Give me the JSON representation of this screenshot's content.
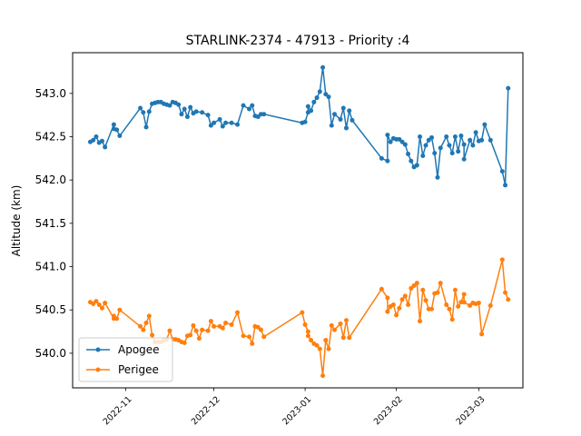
{
  "chart_data": {
    "type": "line",
    "title": "STARLINK-2374 - 47913 - Priority :4",
    "xlabel": "",
    "ylabel": "Altitude (km)",
    "x_ticks": [
      "2022-11",
      "2022-12",
      "2023-01",
      "2023-02",
      "2023-03"
    ],
    "y_ticks": [
      "540.0",
      "540.5",
      "541.0",
      "541.5",
      "542.0",
      "542.5",
      "543.0"
    ],
    "xlim": [
      "2022-10-14",
      "2023-03-16"
    ],
    "ylim": [
      539.6,
      543.47
    ],
    "grid": false,
    "legend_position": "lower-left",
    "series": [
      {
        "name": "Apogee",
        "color": "#1f77b4",
        "points": [
          [
            "2022-10-20",
            542.44
          ],
          [
            "2022-10-21",
            542.46
          ],
          [
            "2022-10-22",
            542.5
          ],
          [
            "2022-10-23",
            542.43
          ],
          [
            "2022-10-24",
            542.45
          ],
          [
            "2022-10-25",
            542.38
          ],
          [
            "2022-10-28",
            542.64
          ],
          [
            "2022-10-28",
            542.59
          ],
          [
            "2022-10-29",
            542.58
          ],
          [
            "2022-10-30",
            542.51
          ],
          [
            "2022-11-06",
            542.83
          ],
          [
            "2022-11-07",
            542.78
          ],
          [
            "2022-11-08",
            542.61
          ],
          [
            "2022-11-09",
            542.79
          ],
          [
            "2022-11-10",
            542.88
          ],
          [
            "2022-11-11",
            542.89
          ],
          [
            "2022-11-12",
            542.9
          ],
          [
            "2022-11-13",
            542.9
          ],
          [
            "2022-11-14",
            542.88
          ],
          [
            "2022-11-15",
            542.87
          ],
          [
            "2022-11-16",
            542.86
          ],
          [
            "2022-11-17",
            542.9
          ],
          [
            "2022-11-18",
            542.89
          ],
          [
            "2022-11-19",
            542.87
          ],
          [
            "2022-11-20",
            542.76
          ],
          [
            "2022-11-21",
            542.82
          ],
          [
            "2022-11-22",
            542.73
          ],
          [
            "2022-11-23",
            542.84
          ],
          [
            "2022-11-24",
            542.77
          ],
          [
            "2022-11-25",
            542.79
          ],
          [
            "2022-11-27",
            542.78
          ],
          [
            "2022-11-29",
            542.75
          ],
          [
            "2022-11-30",
            542.63
          ],
          [
            "2022-12-01",
            542.66
          ],
          [
            "2022-12-03",
            542.7
          ],
          [
            "2022-12-04",
            542.62
          ],
          [
            "2022-12-05",
            542.66
          ],
          [
            "2022-12-07",
            542.66
          ],
          [
            "2022-12-09",
            542.64
          ],
          [
            "2022-12-11",
            542.86
          ],
          [
            "2022-12-13",
            542.82
          ],
          [
            "2022-12-14",
            542.86
          ],
          [
            "2022-12-15",
            542.74
          ],
          [
            "2022-12-16",
            542.73
          ],
          [
            "2022-12-17",
            542.76
          ],
          [
            "2022-12-18",
            542.76
          ],
          [
            "2022-12-31",
            542.66
          ],
          [
            "2023-01-01",
            542.67
          ],
          [
            "2023-01-02",
            542.78
          ],
          [
            "2023-01-02",
            542.85
          ],
          [
            "2023-01-03",
            542.8
          ],
          [
            "2023-01-04",
            542.9
          ],
          [
            "2023-01-05",
            542.95
          ],
          [
            "2023-01-06",
            543.02
          ],
          [
            "2023-01-07",
            543.3
          ],
          [
            "2023-01-08",
            542.99
          ],
          [
            "2023-01-09",
            542.96
          ],
          [
            "2023-01-10",
            542.63
          ],
          [
            "2023-01-11",
            542.76
          ],
          [
            "2023-01-13",
            542.7
          ],
          [
            "2023-01-14",
            542.83
          ],
          [
            "2023-01-15",
            542.6
          ],
          [
            "2023-01-16",
            542.8
          ],
          [
            "2023-01-17",
            542.69
          ],
          [
            "2023-01-27",
            542.25
          ],
          [
            "2023-01-29",
            542.22
          ],
          [
            "2023-01-29",
            542.52
          ],
          [
            "2023-01-30",
            542.44
          ],
          [
            "2023-01-31",
            542.48
          ],
          [
            "2023-02-01",
            542.47
          ],
          [
            "2023-02-02",
            542.47
          ],
          [
            "2023-02-03",
            542.44
          ],
          [
            "2023-02-04",
            542.41
          ],
          [
            "2023-02-05",
            542.3
          ],
          [
            "2023-02-06",
            542.22
          ],
          [
            "2023-02-07",
            542.15
          ],
          [
            "2023-02-08",
            542.17
          ],
          [
            "2023-02-09",
            542.5
          ],
          [
            "2023-02-10",
            542.28
          ],
          [
            "2023-02-11",
            542.4
          ],
          [
            "2023-02-12",
            542.46
          ],
          [
            "2023-02-13",
            542.49
          ],
          [
            "2023-02-14",
            542.31
          ],
          [
            "2023-02-15",
            542.03
          ],
          [
            "2023-02-16",
            542.37
          ],
          [
            "2023-02-18",
            542.5
          ],
          [
            "2023-02-19",
            542.4
          ],
          [
            "2023-02-20",
            542.31
          ],
          [
            "2023-02-21",
            542.5
          ],
          [
            "2023-02-22",
            542.33
          ],
          [
            "2023-02-23",
            542.51
          ],
          [
            "2023-02-24",
            542.41
          ],
          [
            "2023-02-24",
            542.24
          ],
          [
            "2023-02-26",
            542.46
          ],
          [
            "2023-02-27",
            542.4
          ],
          [
            "2023-02-28",
            542.55
          ],
          [
            "2023-03-01",
            542.45
          ],
          [
            "2023-03-02",
            542.46
          ],
          [
            "2023-03-03",
            542.64
          ],
          [
            "2023-03-05",
            542.46
          ],
          [
            "2023-03-09",
            542.1
          ],
          [
            "2023-03-10",
            541.94
          ],
          [
            "2023-03-11",
            543.06
          ]
        ]
      },
      {
        "name": "Perigee",
        "color": "#ff7f0e",
        "points": [
          [
            "2022-10-20",
            540.59
          ],
          [
            "2022-10-21",
            540.57
          ],
          [
            "2022-10-22",
            540.6
          ],
          [
            "2022-10-23",
            540.56
          ],
          [
            "2022-10-24",
            540.52
          ],
          [
            "2022-10-25",
            540.58
          ],
          [
            "2022-10-28",
            540.4
          ],
          [
            "2022-10-28",
            540.43
          ],
          [
            "2022-10-29",
            540.4
          ],
          [
            "2022-10-30",
            540.5
          ],
          [
            "2022-11-06",
            540.31
          ],
          [
            "2022-11-07",
            540.27
          ],
          [
            "2022-11-08",
            540.35
          ],
          [
            "2022-11-09",
            540.43
          ],
          [
            "2022-11-10",
            540.21
          ],
          [
            "2022-11-11",
            540.13
          ],
          [
            "2022-11-12",
            540.13
          ],
          [
            "2022-11-13",
            540.13
          ],
          [
            "2022-11-14",
            540.15
          ],
          [
            "2022-11-15",
            540.16
          ],
          [
            "2022-11-16",
            540.26
          ],
          [
            "2022-11-17",
            540.16
          ],
          [
            "2022-11-18",
            540.16
          ],
          [
            "2022-11-19",
            540.15
          ],
          [
            "2022-11-20",
            540.13
          ],
          [
            "2022-11-21",
            540.12
          ],
          [
            "2022-11-22",
            540.2
          ],
          [
            "2022-11-23",
            540.21
          ],
          [
            "2022-11-24",
            540.32
          ],
          [
            "2022-11-25",
            540.26
          ],
          [
            "2022-11-26",
            540.17
          ],
          [
            "2022-11-27",
            540.27
          ],
          [
            "2022-11-29",
            540.26
          ],
          [
            "2022-11-30",
            540.37
          ],
          [
            "2022-12-01",
            540.31
          ],
          [
            "2022-12-03",
            540.31
          ],
          [
            "2022-12-04",
            540.29
          ],
          [
            "2022-12-05",
            540.35
          ],
          [
            "2022-12-07",
            540.33
          ],
          [
            "2022-12-09",
            540.47
          ],
          [
            "2022-12-11",
            540.2
          ],
          [
            "2022-12-13",
            540.19
          ],
          [
            "2022-12-14",
            540.11
          ],
          [
            "2022-12-15",
            540.31
          ],
          [
            "2022-12-16",
            540.3
          ],
          [
            "2022-12-17",
            540.27
          ],
          [
            "2022-12-18",
            540.19
          ],
          [
            "2022-12-31",
            540.47
          ],
          [
            "2023-01-01",
            540.33
          ],
          [
            "2023-01-02",
            540.25
          ],
          [
            "2023-01-02",
            540.2
          ],
          [
            "2023-01-03",
            540.15
          ],
          [
            "2023-01-04",
            540.11
          ],
          [
            "2023-01-05",
            540.09
          ],
          [
            "2023-01-06",
            540.05
          ],
          [
            "2023-01-07",
            539.74
          ],
          [
            "2023-01-08",
            540.15
          ],
          [
            "2023-01-09",
            540.05
          ],
          [
            "2023-01-10",
            540.32
          ],
          [
            "2023-01-11",
            540.27
          ],
          [
            "2023-01-13",
            540.34
          ],
          [
            "2023-01-14",
            540.18
          ],
          [
            "2023-01-15",
            540.38
          ],
          [
            "2023-01-16",
            540.18
          ],
          [
            "2023-01-27",
            540.74
          ],
          [
            "2023-01-29",
            540.64
          ],
          [
            "2023-01-29",
            540.48
          ],
          [
            "2023-01-30",
            540.54
          ],
          [
            "2023-01-31",
            540.56
          ],
          [
            "2023-02-01",
            540.44
          ],
          [
            "2023-02-02",
            540.52
          ],
          [
            "2023-02-03",
            540.62
          ],
          [
            "2023-02-04",
            540.66
          ],
          [
            "2023-02-05",
            540.56
          ],
          [
            "2023-02-06",
            540.75
          ],
          [
            "2023-02-07",
            540.78
          ],
          [
            "2023-02-08",
            540.81
          ],
          [
            "2023-02-09",
            540.37
          ],
          [
            "2023-02-10",
            540.73
          ],
          [
            "2023-02-11",
            540.61
          ],
          [
            "2023-02-12",
            540.51
          ],
          [
            "2023-02-13",
            540.51
          ],
          [
            "2023-02-14",
            540.69
          ],
          [
            "2023-02-15",
            540.7
          ],
          [
            "2023-02-16",
            540.81
          ],
          [
            "2023-02-18",
            540.56
          ],
          [
            "2023-02-19",
            540.51
          ],
          [
            "2023-02-20",
            540.39
          ],
          [
            "2023-02-21",
            540.73
          ],
          [
            "2023-02-22",
            540.54
          ],
          [
            "2023-02-23",
            540.59
          ],
          [
            "2023-02-24",
            540.68
          ],
          [
            "2023-02-24",
            540.59
          ],
          [
            "2023-02-26",
            540.55
          ],
          [
            "2023-02-27",
            540.58
          ],
          [
            "2023-02-28",
            540.57
          ],
          [
            "2023-03-01",
            540.58
          ],
          [
            "2023-03-02",
            540.22
          ],
          [
            "2023-03-05",
            540.55
          ],
          [
            "2023-03-09",
            541.08
          ],
          [
            "2023-03-10",
            540.7
          ],
          [
            "2023-03-11",
            540.62
          ]
        ]
      }
    ]
  }
}
